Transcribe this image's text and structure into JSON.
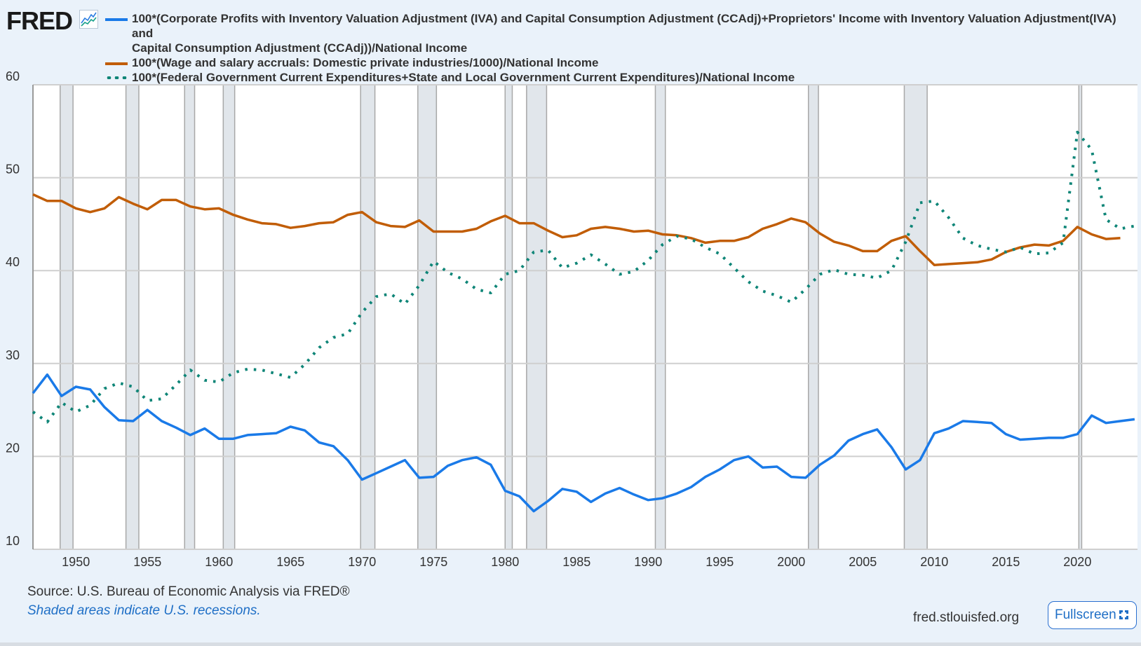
{
  "header": {
    "logo": "FRED",
    "logo_icon": "chart-line-icon"
  },
  "legend": [
    {
      "label_line1": "100*(Corporate Profits with Inventory Valuation Adjustment (IVA) and Capital Consumption Adjustment (CCAdj)+Proprietors' Income with Inventory Valuation Adjustment(IVA) and",
      "label_line2": "Capital Consumption Adjustment (CCAdj))/National Income",
      "color": "#1a7ae8"
    },
    {
      "label_line1": "100*(Wage and salary accruals: Domestic private industries/1000)/National Income",
      "color": "#c15d06"
    },
    {
      "label_line1": "100*(Federal Government Current Expenditures+State and Local Government Current Expenditures)/National Income",
      "color": "#0e8577"
    }
  ],
  "footer": {
    "source": "Source: U.S. Bureau of Economic Analysis via FRED®",
    "note": "Shaded areas indicate U.S. recessions.",
    "site": "fred.stlouisfed.org",
    "fullscreen_label": "Fullscreen"
  },
  "chart_data": {
    "type": "line",
    "title": "",
    "xlabel": "",
    "ylabel": "",
    "ylim": [
      10,
      60
    ],
    "xlim": [
      1947,
      2024.2
    ],
    "yticks": [
      "10",
      "20",
      "30",
      "40",
      "50",
      "60"
    ],
    "xticks": [
      "1950",
      "1955",
      "1960",
      "1965",
      "1970",
      "1975",
      "1980",
      "1985",
      "1990",
      "1995",
      "2000",
      "2005",
      "2010",
      "2015",
      "2020"
    ],
    "grid": true,
    "legend_position": "top",
    "recessions": [
      [
        1948.9,
        1949.8
      ],
      [
        1953.5,
        1954.4
      ],
      [
        1957.6,
        1958.3
      ],
      [
        1960.3,
        1961.1
      ],
      [
        1969.9,
        1970.9
      ],
      [
        1973.9,
        1975.2
      ],
      [
        1980.0,
        1980.5
      ],
      [
        1981.5,
        1982.9
      ],
      [
        1990.5,
        1991.2
      ],
      [
        2001.2,
        2001.9
      ],
      [
        2007.9,
        2009.5
      ],
      [
        2020.1,
        2020.3
      ]
    ],
    "series": [
      {
        "name": "Corporate profits + proprietors' income share",
        "color": "#1a7ae8",
        "style": "solid",
        "start": 1947,
        "values": [
          26.8,
          28.8,
          26.5,
          27.5,
          27.2,
          25.3,
          23.9,
          23.8,
          25.0,
          23.8,
          23.1,
          22.3,
          23.0,
          21.9,
          21.9,
          22.3,
          22.4,
          22.5,
          23.2,
          22.8,
          21.5,
          21.1,
          19.6,
          17.5,
          18.2,
          18.9,
          19.6,
          17.7,
          17.8,
          19.0,
          19.6,
          19.9,
          19.1,
          16.3,
          15.7,
          14.1,
          15.2,
          16.5,
          16.2,
          15.1,
          16.0,
          16.6,
          15.9,
          15.3,
          15.5,
          16.0,
          16.7,
          17.8,
          18.6,
          19.6,
          20.0,
          18.8,
          18.9,
          17.8,
          17.7,
          19.1,
          20.1,
          21.7,
          22.4,
          22.9,
          21.0,
          18.6,
          19.6,
          22.5,
          23.0,
          23.8,
          23.7,
          23.6,
          22.4,
          21.8,
          21.9,
          22.0,
          22.0,
          22.4,
          24.4,
          23.6,
          23.8,
          24.0
        ]
      },
      {
        "name": "Wage and salary accruals share",
        "color": "#c15d06",
        "style": "solid",
        "start": 1947,
        "values": [
          48.2,
          47.5,
          47.5,
          46.7,
          46.3,
          46.7,
          47.9,
          47.2,
          46.6,
          47.6,
          47.6,
          46.9,
          46.6,
          46.7,
          46.0,
          45.5,
          45.1,
          45.0,
          44.6,
          44.8,
          45.1,
          45.2,
          46.0,
          46.3,
          45.2,
          44.8,
          44.7,
          45.4,
          44.2,
          44.2,
          44.2,
          44.5,
          45.3,
          45.9,
          45.1,
          45.1,
          44.3,
          43.6,
          43.8,
          44.5,
          44.7,
          44.5,
          44.2,
          44.3,
          43.9,
          43.8,
          43.5,
          43.0,
          43.2,
          43.2,
          43.6,
          44.5,
          45.0,
          45.6,
          45.2,
          44.0,
          43.1,
          42.7,
          42.1,
          42.1,
          43.2,
          43.7,
          42.1,
          40.6,
          40.7,
          40.8,
          40.9,
          41.2,
          42.0,
          42.5,
          42.8,
          42.7,
          43.2,
          44.7,
          43.9,
          43.4,
          43.5
        ]
      },
      {
        "name": "Government current expenditures share",
        "color": "#0e8577",
        "style": "dotted",
        "start": 1947,
        "values": [
          24.8,
          23.7,
          25.8,
          24.8,
          25.5,
          27.3,
          27.9,
          27.5,
          26.0,
          26.2,
          27.7,
          29.3,
          28.2,
          28.0,
          29.0,
          29.4,
          29.3,
          28.9,
          28.5,
          29.9,
          31.7,
          32.8,
          33.2,
          35.5,
          37.2,
          37.5,
          36.4,
          38.4,
          41.0,
          39.8,
          39.1,
          38.0,
          37.6,
          39.6,
          40.0,
          42.0,
          42.2,
          40.3,
          40.8,
          41.7,
          40.7,
          39.6,
          39.9,
          41.1,
          42.8,
          43.7,
          43.4,
          42.5,
          41.8,
          40.3,
          38.8,
          37.8,
          37.3,
          36.6,
          38.0,
          39.6,
          40.1,
          39.6,
          39.5,
          39.2,
          40.0,
          43.1,
          47.3,
          47.5,
          45.7,
          43.5,
          42.7,
          42.3,
          42.0,
          42.5,
          41.8,
          41.9,
          43.0,
          54.9,
          53.0,
          45.5,
          44.5,
          44.8
        ]
      }
    ]
  }
}
